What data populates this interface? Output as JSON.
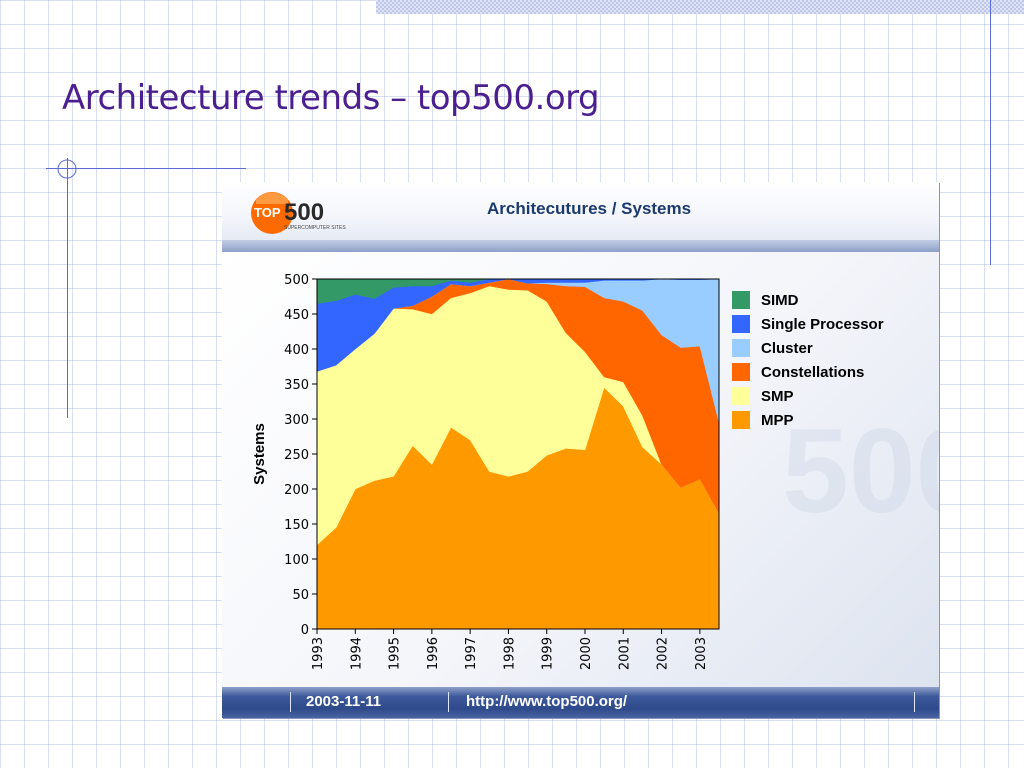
{
  "slide": {
    "title": "Architecture trends – top500.org"
  },
  "panel": {
    "logo_top": "TOP",
    "logo_num": "500",
    "logo_sub": "SUPERCOMPUTER SITES",
    "title": "Architecutures / Systems",
    "footer_date": "2003-11-11",
    "footer_url": "http://www.top500.org/"
  },
  "colors": {
    "title": "#4b1f8f",
    "mpp": "#ff9900",
    "smp": "#ffff99",
    "constellations": "#ff6600",
    "cluster": "#99ccff",
    "single_processor": "#3366ff",
    "simd": "#339966"
  },
  "chart_data": {
    "type": "area",
    "stacked": true,
    "title": "Architecutures / Systems",
    "xlabel": "",
    "ylabel": "Systems",
    "ylim": [
      0,
      500
    ],
    "yticks": [
      0,
      50,
      100,
      150,
      200,
      250,
      300,
      350,
      400,
      450,
      500
    ],
    "xticks": [
      "1993",
      "1994",
      "1995",
      "1996",
      "1997",
      "1998",
      "1999",
      "2000",
      "2001",
      "2002",
      "2003"
    ],
    "x": [
      1993.0,
      1993.5,
      1994.0,
      1994.5,
      1995.0,
      1995.5,
      1996.0,
      1996.5,
      1997.0,
      1997.5,
      1998.0,
      1998.5,
      1999.0,
      1999.5,
      2000.0,
      2000.5,
      2001.0,
      2001.5,
      2002.0,
      2002.5,
      2003.0,
      2003.5
    ],
    "legend_position": "right",
    "series": [
      {
        "name": "MPP",
        "color": "#ff9900",
        "values": [
          120,
          145,
          200,
          212,
          218,
          262,
          235,
          288,
          270,
          225,
          218,
          225,
          248,
          258,
          256,
          345,
          318,
          260,
          235,
          202,
          214,
          165
        ]
      },
      {
        "name": "SMP",
        "color": "#ffff99",
        "values": [
          248,
          232,
          200,
          210,
          240,
          195,
          215,
          185,
          210,
          265,
          267,
          259,
          220,
          165,
          140,
          15,
          35,
          45,
          0,
          0,
          0,
          0
        ]
      },
      {
        "name": "Constellations",
        "color": "#ff6600",
        "values": [
          0,
          0,
          0,
          0,
          0,
          5,
          25,
          20,
          10,
          5,
          15,
          10,
          25,
          67,
          93,
          113,
          115,
          150,
          185,
          200,
          190,
          130
        ]
      },
      {
        "name": "Cluster",
        "color": "#99ccff",
        "values": [
          0,
          0,
          0,
          0,
          0,
          0,
          0,
          0,
          0,
          0,
          0,
          0,
          2,
          5,
          6,
          25,
          30,
          43,
          80,
          97,
          95,
          205
        ]
      },
      {
        "name": "Single Processor",
        "color": "#3366ff",
        "values": [
          97,
          92,
          78,
          50,
          30,
          28,
          15,
          5,
          5,
          5,
          0,
          6,
          5,
          5,
          5,
          2,
          2,
          2,
          0,
          1,
          1,
          0
        ]
      },
      {
        "name": "SIMD",
        "color": "#339966",
        "values": [
          35,
          31,
          22,
          28,
          12,
          10,
          10,
          2,
          5,
          0,
          0,
          0,
          0,
          0,
          0,
          0,
          0,
          0,
          0,
          0,
          0,
          0
        ]
      }
    ],
    "legend_order": [
      "SIMD",
      "Single Processor",
      "Cluster",
      "Constellations",
      "SMP",
      "MPP"
    ]
  }
}
